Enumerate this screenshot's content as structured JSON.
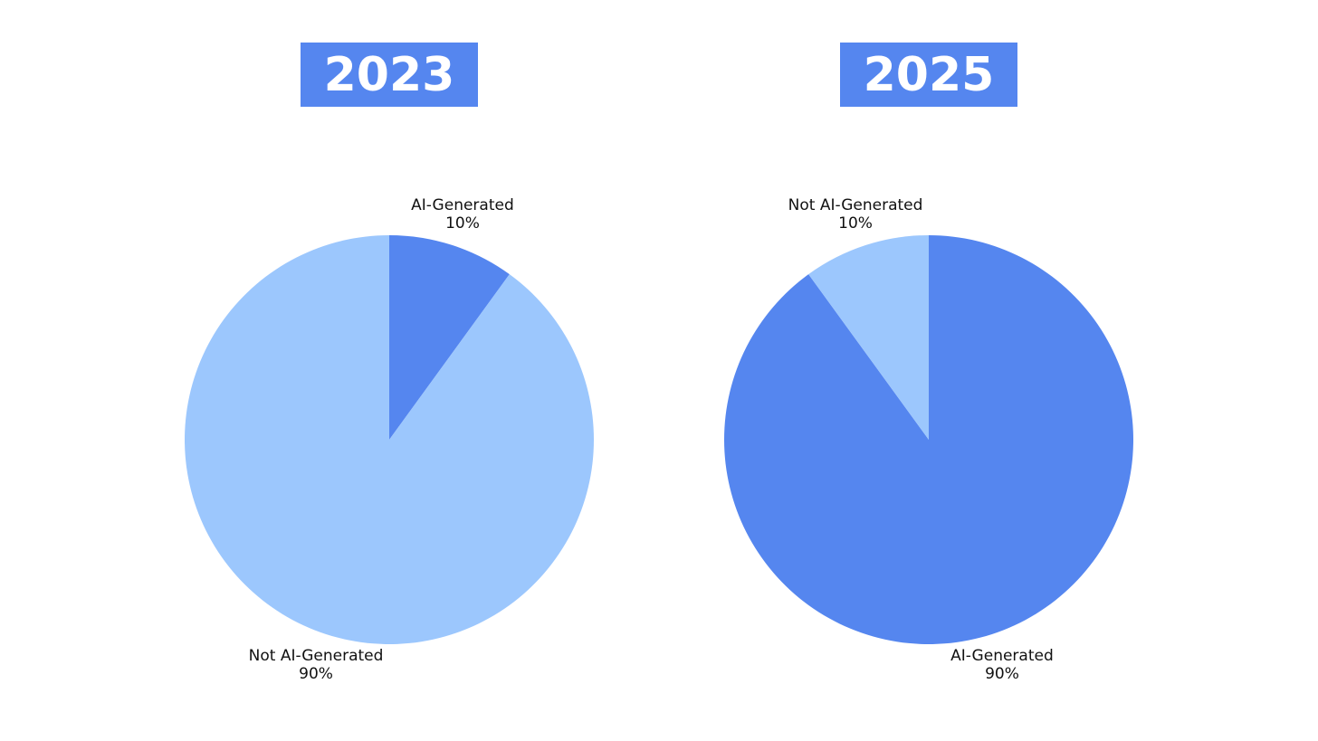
{
  "chart_data": [
    {
      "type": "pie",
      "title": "2023",
      "categories": [
        "AI-Generated",
        "Not AI-Generated"
      ],
      "values": [
        10,
        90
      ],
      "value_labels": [
        "10%",
        "90%"
      ],
      "colors": [
        "#5586ef",
        "#9cc7fd"
      ],
      "title_color": "#5586ef"
    },
    {
      "type": "pie",
      "title": "2025",
      "categories": [
        "AI-Generated",
        "Not AI-Generated"
      ],
      "values": [
        90,
        10
      ],
      "value_labels": [
        "90%",
        "10%"
      ],
      "colors": [
        "#5586ef",
        "#9cc7fd"
      ],
      "title_color": "#5586ef"
    }
  ]
}
